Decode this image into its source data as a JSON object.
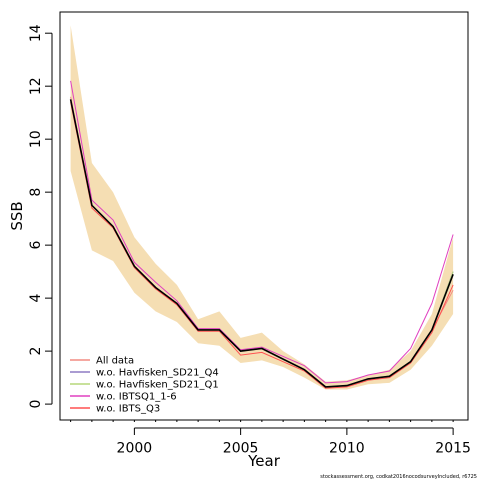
{
  "chart_data": {
    "type": "line",
    "xlabel": "Year",
    "ylabel": "SSB",
    "xlim": [
      1996.5,
      2015.7
    ],
    "ylim": [
      -0.6,
      14.8
    ],
    "xticks": [
      2000,
      2005,
      2010,
      2015
    ],
    "yticks": [
      0,
      2,
      4,
      6,
      8,
      10,
      12,
      14
    ],
    "grid": false,
    "legend_position": "bottom-left",
    "x": [
      1997,
      1998,
      1999,
      2000,
      2001,
      2002,
      2003,
      2004,
      2005,
      2006,
      2007,
      2008,
      2009,
      2010,
      2011,
      2012,
      2013,
      2014,
      2015
    ],
    "band": {
      "color": "#f5deb3",
      "upper": [
        14.3,
        9.1,
        8.0,
        6.3,
        5.3,
        4.5,
        3.2,
        3.5,
        2.5,
        2.7,
        2.0,
        1.5,
        0.85,
        0.9,
        1.1,
        1.3,
        2.0,
        3.4,
        6.3
      ],
      "lower": [
        8.8,
        5.8,
        5.4,
        4.2,
        3.5,
        3.1,
        2.3,
        2.2,
        1.55,
        1.65,
        1.4,
        1.0,
        0.55,
        0.55,
        0.75,
        0.8,
        1.3,
        2.2,
        3.4
      ]
    },
    "main_line": {
      "color": "#000000",
      "values": [
        11.5,
        7.5,
        6.7,
        5.2,
        4.4,
        3.8,
        2.8,
        2.8,
        2.0,
        2.1,
        1.7,
        1.3,
        0.65,
        0.7,
        0.95,
        1.05,
        1.6,
        2.8,
        4.9
      ]
    },
    "series": [
      {
        "name": "All data",
        "color": "#f28b82",
        "values": [
          11.6,
          7.5,
          6.7,
          5.2,
          4.4,
          3.8,
          2.8,
          2.8,
          2.0,
          2.1,
          1.7,
          1.3,
          0.65,
          0.7,
          0.95,
          1.05,
          1.6,
          2.8,
          4.3
        ]
      },
      {
        "name": "w.o. Havfisken_SD21_Q4",
        "color": "#8e7cc3",
        "values": [
          11.5,
          7.5,
          6.7,
          5.2,
          4.4,
          3.8,
          2.8,
          2.8,
          2.0,
          2.1,
          1.7,
          1.3,
          0.65,
          0.7,
          0.95,
          1.05,
          1.6,
          2.8,
          5.0
        ]
      },
      {
        "name": "w.o. Havfisken_SD21_Q1",
        "color": "#b6d77a",
        "values": [
          11.5,
          7.5,
          6.7,
          5.2,
          4.4,
          3.8,
          2.8,
          2.8,
          2.0,
          2.1,
          1.7,
          1.3,
          0.65,
          0.7,
          0.95,
          1.05,
          1.6,
          2.8,
          5.0
        ]
      },
      {
        "name": "w.o. IBTSQ1_1-6",
        "color": "#e040c0",
        "values": [
          12.2,
          7.7,
          6.95,
          5.35,
          4.6,
          3.9,
          2.85,
          2.85,
          2.05,
          2.15,
          1.8,
          1.45,
          0.8,
          0.85,
          1.1,
          1.25,
          2.1,
          3.8,
          6.4
        ]
      },
      {
        "name": "w.o. IBTS_Q3",
        "color": "#ff5050",
        "values": [
          11.4,
          7.4,
          6.65,
          5.15,
          4.35,
          3.75,
          2.75,
          2.75,
          1.85,
          1.95,
          1.6,
          1.25,
          0.6,
          0.65,
          0.9,
          1.0,
          1.55,
          2.7,
          4.5
        ]
      }
    ],
    "footnote": "stockassessment.org, codkat2016nocodsurveyIncluded, r6725"
  }
}
